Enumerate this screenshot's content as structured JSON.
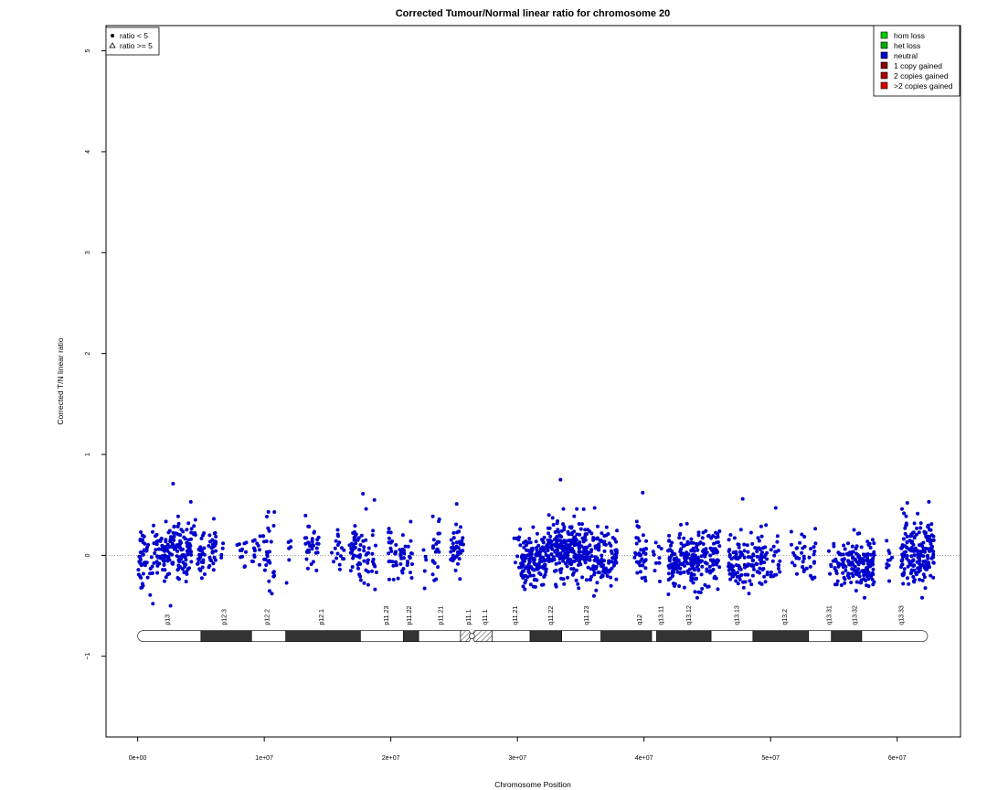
{
  "chart_data": {
    "type": "scatter",
    "title": "Corrected Tumour/Normal linear ratio for chromosome  20",
    "xlabel": "Chromosome Position",
    "ylabel": "Corrected T/N linear ratio",
    "xlim": [
      -2500000,
      65000000
    ],
    "ylim": [
      -1.8,
      5.25
    ],
    "x_ticks": [
      0,
      10000000,
      20000000,
      30000000,
      40000000,
      50000000,
      60000000
    ],
    "x_tick_labels": [
      "0e+00",
      "1e+07",
      "2e+07",
      "3e+07",
      "4e+07",
      "5e+07",
      "6e+07"
    ],
    "y_ticks": [
      -1,
      0,
      1,
      2,
      3,
      4,
      5
    ],
    "y_tick_labels": [
      "−1",
      "0",
      "1",
      "2",
      "3",
      "4",
      "5"
    ],
    "reference_line": {
      "y": 0,
      "style": "dotted",
      "color": "#777777"
    },
    "point_color": "#0000cc",
    "shape_legend": {
      "placement": "top-left",
      "items": [
        {
          "symbol": "filled-circle",
          "label": "ratio < 5"
        },
        {
          "symbol": "open-triangle",
          "label": "ratio >= 5"
        }
      ]
    },
    "state_legend": {
      "placement": "top-right",
      "items": [
        {
          "label": "hom loss",
          "color": "#00cc00"
        },
        {
          "label": "het loss",
          "color": "#00aa00"
        },
        {
          "label": "neutral",
          "color": "#0000cc"
        },
        {
          "label": "1 copy gained",
          "color": "#880000"
        },
        {
          "label": "2 copies gained",
          "color": "#aa0000"
        },
        {
          "label": ">2 copies gained",
          "color": "#dd0000"
        }
      ]
    },
    "point_clusters": [
      {
        "x_start": 0,
        "x_end": 300000,
        "n": 16,
        "mean": -0.05,
        "sd": 0.16
      },
      {
        "x_start": 300000,
        "x_end": 1500000,
        "n": 40,
        "mean": -0.02,
        "sd": 0.16
      },
      {
        "x_start": 1500000,
        "x_end": 2500000,
        "n": 60,
        "mean": 0.03,
        "sd": 0.14
      },
      {
        "x_start": 2500000,
        "x_end": 4300000,
        "n": 100,
        "mean": 0.06,
        "sd": 0.14
      },
      {
        "x_start": 4300000,
        "x_end": 4600000,
        "n": 6,
        "mean": 0.1,
        "sd": 0.2
      },
      {
        "x_start": 4700000,
        "x_end": 5400000,
        "n": 28,
        "mean": 0.0,
        "sd": 0.13
      },
      {
        "x_start": 5600000,
        "x_end": 6200000,
        "n": 28,
        "mean": 0.06,
        "sd": 0.13
      },
      {
        "x_start": 6400000,
        "x_end": 6800000,
        "n": 4,
        "mean": -0.05,
        "sd": 0.1
      },
      {
        "x_start": 7800000,
        "x_end": 8600000,
        "n": 12,
        "mean": 0.05,
        "sd": 0.11
      },
      {
        "x_start": 9000000,
        "x_end": 9700000,
        "n": 14,
        "mean": 0.05,
        "sd": 0.12
      },
      {
        "x_start": 9900000,
        "x_end": 10800000,
        "n": 30,
        "mean": 0.0,
        "sd": 0.18
      },
      {
        "x_start": 11600000,
        "x_end": 12200000,
        "n": 6,
        "mean": 0.05,
        "sd": 0.1
      },
      {
        "x_start": 13200000,
        "x_end": 14300000,
        "n": 34,
        "mean": 0.12,
        "sd": 0.12
      },
      {
        "x_start": 15300000,
        "x_end": 16300000,
        "n": 18,
        "mean": 0.05,
        "sd": 0.13
      },
      {
        "x_start": 16700000,
        "x_end": 18900000,
        "n": 70,
        "mean": 0.04,
        "sd": 0.15
      },
      {
        "x_start": 19800000,
        "x_end": 21700000,
        "n": 56,
        "mean": 0.0,
        "sd": 0.14
      },
      {
        "x_start": 22500000,
        "x_end": 23000000,
        "n": 5,
        "mean": 0.05,
        "sd": 0.12
      },
      {
        "x_start": 23300000,
        "x_end": 23900000,
        "n": 22,
        "mean": 0.05,
        "sd": 0.18
      },
      {
        "x_start": 24700000,
        "x_end": 25800000,
        "n": 42,
        "mean": 0.04,
        "sd": 0.16
      },
      {
        "x_start": 29700000,
        "x_end": 30300000,
        "n": 10,
        "mean": 0.02,
        "sd": 0.12
      },
      {
        "x_start": 30300000,
        "x_end": 32300000,
        "n": 140,
        "mean": -0.05,
        "sd": 0.12
      },
      {
        "x_start": 32300000,
        "x_end": 35600000,
        "n": 240,
        "mean": 0.05,
        "sd": 0.14
      },
      {
        "x_start": 35600000,
        "x_end": 37900000,
        "n": 120,
        "mean": -0.03,
        "sd": 0.14
      },
      {
        "x_start": 39200000,
        "x_end": 40200000,
        "n": 40,
        "mean": 0.04,
        "sd": 0.16
      },
      {
        "x_start": 40700000,
        "x_end": 41400000,
        "n": 12,
        "mean": -0.05,
        "sd": 0.12
      },
      {
        "x_start": 41900000,
        "x_end": 46000000,
        "n": 230,
        "mean": -0.05,
        "sd": 0.13
      },
      {
        "x_start": 46600000,
        "x_end": 49800000,
        "n": 130,
        "mean": -0.05,
        "sd": 0.14
      },
      {
        "x_start": 50000000,
        "x_end": 50800000,
        "n": 20,
        "mean": -0.04,
        "sd": 0.14
      },
      {
        "x_start": 51600000,
        "x_end": 53600000,
        "n": 40,
        "mean": -0.05,
        "sd": 0.12
      },
      {
        "x_start": 54600000,
        "x_end": 55700000,
        "n": 26,
        "mean": -0.1,
        "sd": 0.12
      },
      {
        "x_start": 55700000,
        "x_end": 58200000,
        "n": 150,
        "mean": -0.07,
        "sd": 0.13
      },
      {
        "x_start": 59000000,
        "x_end": 59600000,
        "n": 10,
        "mean": -0.05,
        "sd": 0.12
      },
      {
        "x_start": 60300000,
        "x_end": 62900000,
        "n": 180,
        "mean": 0.02,
        "sd": 0.16
      }
    ],
    "highlight_points": [
      {
        "x": 2800000,
        "y": 0.71
      },
      {
        "x": 4200000,
        "y": 0.53
      },
      {
        "x": 17800000,
        "y": 0.61
      },
      {
        "x": 18700000,
        "y": 0.55
      },
      {
        "x": 25200000,
        "y": 0.51
      },
      {
        "x": 33400000,
        "y": 0.75
      },
      {
        "x": 36100000,
        "y": 0.47
      },
      {
        "x": 39900000,
        "y": 0.62
      },
      {
        "x": 47800000,
        "y": 0.56
      },
      {
        "x": 50400000,
        "y": 0.47
      },
      {
        "x": 60800000,
        "y": 0.52
      },
      {
        "x": 62500000,
        "y": 0.53
      },
      {
        "x": 1200000,
        "y": -0.48
      },
      {
        "x": 2600000,
        "y": -0.5
      },
      {
        "x": 10600000,
        "y": -0.38
      },
      {
        "x": 44200000,
        "y": -0.42
      }
    ],
    "ideogram": {
      "y": -0.8,
      "centromere_x": 26400000,
      "bands": [
        {
          "name": "p13",
          "start": 0,
          "end": 5000000,
          "stain": "white",
          "label_x": 2500000
        },
        {
          "name": "p12.3",
          "start": 5000000,
          "end": 9000000,
          "stain": "dark",
          "label_x": 7000000
        },
        {
          "name": "p12.2",
          "start": 9000000,
          "end": 11700000,
          "stain": "white",
          "label_x": 10400000
        },
        {
          "name": "p12.1",
          "start": 11700000,
          "end": 17600000,
          "stain": "dark",
          "label_x": 14700000
        },
        {
          "name": "p11.23",
          "start": 17600000,
          "end": 21000000,
          "stain": "white",
          "label_x": 19800000
        },
        {
          "name": "p11.22",
          "start": 21000000,
          "end": 22200000,
          "stain": "dark",
          "label_x": 21600000
        },
        {
          "name": "p11.21",
          "start": 22200000,
          "end": 25500000,
          "stain": "white",
          "label_x": 24100000
        },
        {
          "name": "p11.1",
          "start": 25500000,
          "end": 26400000,
          "stain": "hatched",
          "label_x": 26300000
        },
        {
          "name": "q11.1",
          "start": 26400000,
          "end": 28000000,
          "stain": "hatched",
          "label_x": 27600000
        },
        {
          "name": "q11.21",
          "start": 28000000,
          "end": 31000000,
          "stain": "white",
          "label_x": 30000000
        },
        {
          "name": "q11.22",
          "start": 31000000,
          "end": 33500000,
          "stain": "dark",
          "label_x": 32800000
        },
        {
          "name": "q11.23",
          "start": 33500000,
          "end": 36600000,
          "stain": "white",
          "label_x": 35600000
        },
        {
          "name": "q12",
          "start": 36600000,
          "end": 40600000,
          "stain": "dark",
          "label_x": 39800000
        },
        {
          "name": "q13.11",
          "start": 40600000,
          "end": 41000000,
          "stain": "white",
          "label_x": 41500000
        },
        {
          "name": "q13.12",
          "start": 41000000,
          "end": 45300000,
          "stain": "dark",
          "label_x": 43700000
        },
        {
          "name": "q13.13",
          "start": 45300000,
          "end": 48600000,
          "stain": "white",
          "label_x": 47500000
        },
        {
          "name": "q13.2",
          "start": 48600000,
          "end": 53000000,
          "stain": "dark",
          "label_x": 51300000
        },
        {
          "name": "q13.31",
          "start": 53000000,
          "end": 54800000,
          "stain": "white",
          "label_x": 54800000
        },
        {
          "name": "q13.32",
          "start": 54800000,
          "end": 57200000,
          "stain": "dark",
          "label_x": 56800000
        },
        {
          "name": "q13.33",
          "start": 57200000,
          "end": 62400000,
          "stain": "white",
          "label_x": 60500000
        }
      ]
    }
  }
}
